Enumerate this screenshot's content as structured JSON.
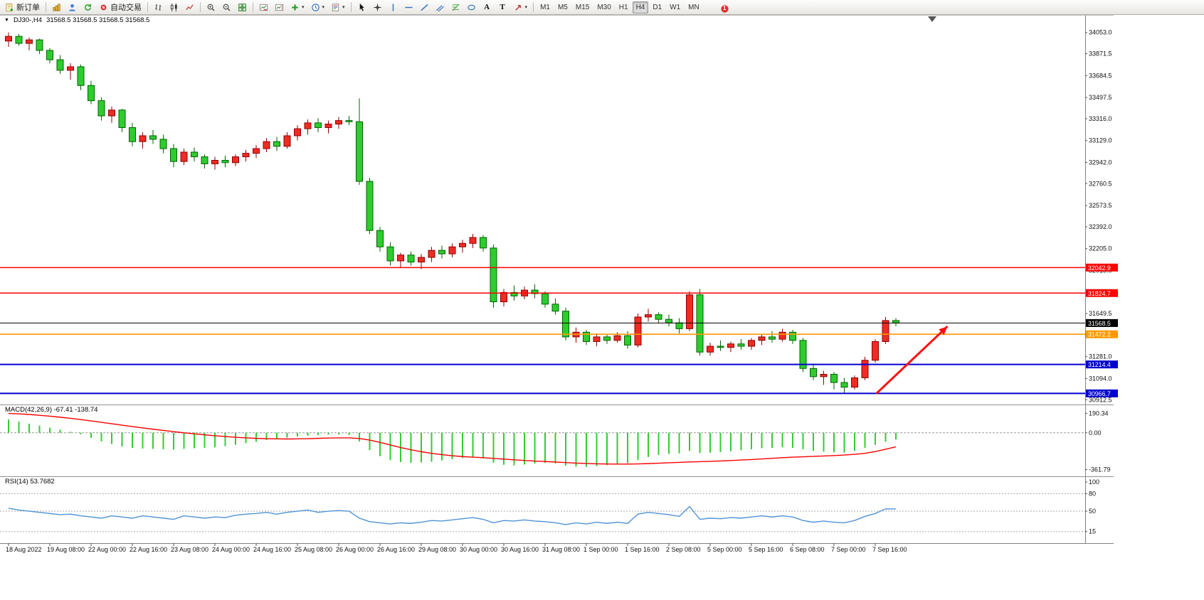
{
  "colors": {
    "up": "#ed2c24",
    "up_border": "#8f0000",
    "down": "#2ecc2e",
    "down_border": "#006400",
    "macd_hist": "#32cd32",
    "macd_signal": "#ff0000",
    "rsi": "#4f93d6",
    "line_red": "#ff0000",
    "line_orange": "#ff9900",
    "line_blue": "#0000d0",
    "bid_black": "#000000",
    "arrow": "#ff1010",
    "axis_text": "#111111"
  },
  "toolbar": {
    "groups": [
      {
        "name": "trade",
        "items": [
          {
            "icon": "new-order-icon",
            "name": "new-order-button",
            "label": "新订单"
          }
        ]
      },
      {
        "name": "services",
        "items": [
          {
            "icon": "market-icon",
            "name": "market-button"
          },
          {
            "icon": "profile-icon",
            "name": "profile-button"
          },
          {
            "icon": "refresh-icon",
            "name": "refresh-button"
          },
          {
            "icon": "autotrade-icon",
            "name": "autotrade-button",
            "label": "自动交易"
          }
        ]
      },
      {
        "name": "chart-types",
        "items": [
          {
            "icon": "bar-chart-icon",
            "name": "bar-chart-button"
          },
          {
            "icon": "candlestick-icon",
            "name": "candlestick-button"
          },
          {
            "icon": "line-chart-icon",
            "name": "line-chart-button"
          }
        ]
      },
      {
        "name": "zoom",
        "items": [
          {
            "icon": "zoom-in-icon",
            "name": "zoom-in-button"
          },
          {
            "icon": "zoom-out-icon",
            "name": "zoom-out-button"
          },
          {
            "icon": "tile-windows-icon",
            "name": "tile-windows-button"
          }
        ]
      },
      {
        "name": "chart-options",
        "items": [
          {
            "icon": "auto-scroll-icon",
            "name": "auto-scroll-button"
          },
          {
            "icon": "chart-shift-icon",
            "name": "chart-shift-button"
          },
          {
            "icon": "indicators-icon",
            "name": "indicators-button",
            "caret": true
          },
          {
            "icon": "periods-icon",
            "name": "periods-button",
            "caret": true
          },
          {
            "icon": "templates-icon",
            "name": "templates-button",
            "caret": true
          }
        ]
      },
      {
        "name": "drawing-tools",
        "items": [
          {
            "icon": "cursor-icon",
            "name": "cursor-button"
          },
          {
            "icon": "crosshair-icon",
            "name": "crosshair-button"
          },
          {
            "icon": "vline-icon",
            "name": "vertical-line-button"
          },
          {
            "icon": "hline-icon",
            "name": "horizontal-line-button"
          },
          {
            "icon": "trendline-icon",
            "name": "trendline-button"
          },
          {
            "icon": "channel-icon",
            "name": "equidistant-channel-button"
          },
          {
            "icon": "fibonacci-icon",
            "name": "fibonacci-button"
          },
          {
            "icon": "shapes-icon",
            "name": "shapes-button"
          },
          {
            "icon": "text-icon",
            "name": "text-button",
            "glyph": "A"
          },
          {
            "icon": "label-icon",
            "name": "text-label-button",
            "glyph": "T"
          },
          {
            "icon": "arrows-icon",
            "name": "arrows-button",
            "caret": true
          }
        ]
      },
      {
        "name": "timeframes",
        "type": "timeframes",
        "items": [
          {
            "label": "M1"
          },
          {
            "label": "M5"
          },
          {
            "label": "M15"
          },
          {
            "label": "M30"
          },
          {
            "label": "H1"
          },
          {
            "label": "H4",
            "active": true
          },
          {
            "label": "D1"
          },
          {
            "label": "W1"
          },
          {
            "label": "MN"
          }
        ]
      }
    ],
    "right": [
      {
        "icon": "news-icon",
        "name": "news-indicator"
      },
      {
        "icon": "notification-badge-icon",
        "name": "notification-badge",
        "label": "1"
      }
    ]
  },
  "chart_header": {
    "expander": "▼",
    "symbol": "DJ30-,H4",
    "ohlc": "31568.5 31568.5 31568.5 31568.5"
  },
  "chart_data": {
    "type": "candlestick",
    "symbol": "DJ30-",
    "timeframe": "H4",
    "ylim": [
      30890,
      34100
    ],
    "price_ticks": [
      "34053.0",
      "33871.5",
      "33684.5",
      "33497.5",
      "33316.0",
      "33129.0",
      "32942.0",
      "32760.5",
      "32573.5",
      "32392.0",
      "32205.0",
      "32018.0",
      "31836.5",
      "31649.5",
      "31462.5",
      "31281.0",
      "31094.0",
      "30912.5"
    ],
    "time_labels": [
      "18 Aug 2022",
      "19 Aug 08:00",
      "22 Aug 00:00",
      "22 Aug 16:00",
      "23 Aug 08:00",
      "24 Aug 00:00",
      "24 Aug 16:00",
      "25 Aug 08:00",
      "26 Aug 00:00",
      "26 Aug 16:00",
      "29 Aug 08:00",
      "30 Aug 00:00",
      "30 Aug 16:00",
      "31 Aug 08:00",
      "1 Sep 00:00",
      "1 Sep 16:00",
      "2 Sep 08:00",
      "5 Sep 00:00",
      "5 Sep 16:00",
      "6 Sep 08:00",
      "7 Sep 00:00",
      "7 Sep 16:00"
    ],
    "label_every_n_bars": 4,
    "candles": [
      [
        33980,
        34053,
        33930,
        34020
      ],
      [
        34020,
        34040,
        33940,
        33960
      ],
      [
        33960,
        34010,
        33900,
        33990
      ],
      [
        33990,
        34000,
        33870,
        33900
      ],
      [
        33900,
        33920,
        33790,
        33820
      ],
      [
        33820,
        33860,
        33700,
        33730
      ],
      [
        33730,
        33790,
        33650,
        33760
      ],
      [
        33760,
        33780,
        33560,
        33600
      ],
      [
        33600,
        33640,
        33440,
        33470
      ],
      [
        33470,
        33500,
        33300,
        33340
      ],
      [
        33340,
        33420,
        33280,
        33390
      ],
      [
        33390,
        33400,
        33200,
        33240
      ],
      [
        33240,
        33280,
        33080,
        33120
      ],
      [
        33120,
        33200,
        33060,
        33170
      ],
      [
        33170,
        33220,
        33100,
        33140
      ],
      [
        33140,
        33180,
        33020,
        33060
      ],
      [
        33060,
        33100,
        32900,
        32950
      ],
      [
        32950,
        33060,
        32920,
        33030
      ],
      [
        33030,
        33070,
        32950,
        32990
      ],
      [
        32990,
        33010,
        32890,
        32930
      ],
      [
        32930,
        32990,
        32880,
        32960
      ],
      [
        32960,
        33000,
        32900,
        32940
      ],
      [
        32940,
        33010,
        32910,
        32990
      ],
      [
        32990,
        33050,
        32950,
        33020
      ],
      [
        33020,
        33090,
        32980,
        33060
      ],
      [
        33060,
        33150,
        33030,
        33120
      ],
      [
        33120,
        33160,
        33040,
        33080
      ],
      [
        33080,
        33200,
        33060,
        33170
      ],
      [
        33170,
        33260,
        33130,
        33230
      ],
      [
        33230,
        33310,
        33180,
        33280
      ],
      [
        33280,
        33320,
        33200,
        33240
      ],
      [
        33240,
        33300,
        33190,
        33270
      ],
      [
        33270,
        33330,
        33230,
        33300
      ],
      [
        33300,
        33340,
        33260,
        33290
      ],
      [
        33290,
        33490,
        32750,
        32780
      ],
      [
        32780,
        32810,
        32330,
        32360
      ],
      [
        32360,
        32390,
        32180,
        32220
      ],
      [
        32220,
        32260,
        32060,
        32100
      ],
      [
        32100,
        32170,
        32040,
        32150
      ],
      [
        32150,
        32180,
        32060,
        32090
      ],
      [
        32090,
        32160,
        32030,
        32130
      ],
      [
        32130,
        32220,
        32090,
        32190
      ],
      [
        32190,
        32230,
        32120,
        32160
      ],
      [
        32160,
        32250,
        32130,
        32220
      ],
      [
        32220,
        32280,
        32170,
        32250
      ],
      [
        32250,
        32330,
        32210,
        32300
      ],
      [
        32300,
        32320,
        32180,
        32210
      ],
      [
        32210,
        32240,
        31700,
        31750
      ],
      [
        31750,
        31860,
        31710,
        31830
      ],
      [
        31830,
        31890,
        31760,
        31800
      ],
      [
        31800,
        31880,
        31770,
        31850
      ],
      [
        31850,
        31900,
        31780,
        31820
      ],
      [
        31820,
        31840,
        31700,
        31730
      ],
      [
        31730,
        31780,
        31640,
        31670
      ],
      [
        31670,
        31700,
        31420,
        31450
      ],
      [
        31450,
        31530,
        31400,
        31490
      ],
      [
        31490,
        31510,
        31380,
        31410
      ],
      [
        31410,
        31480,
        31370,
        31450
      ],
      [
        31450,
        31470,
        31390,
        31420
      ],
      [
        31420,
        31490,
        31400,
        31460
      ],
      [
        31460,
        31500,
        31350,
        31380
      ],
      [
        31380,
        31650,
        31360,
        31620
      ],
      [
        31620,
        31690,
        31580,
        31640
      ],
      [
        31640,
        31660,
        31570,
        31600
      ],
      [
        31600,
        31640,
        31540,
        31570
      ],
      [
        31570,
        31610,
        31480,
        31520
      ],
      [
        31520,
        31840,
        31500,
        31810
      ],
      [
        31810,
        31860,
        31290,
        31320
      ],
      [
        31320,
        31400,
        31290,
        31370
      ],
      [
        31370,
        31420,
        31330,
        31360
      ],
      [
        31360,
        31410,
        31320,
        31390
      ],
      [
        31390,
        31430,
        31340,
        31370
      ],
      [
        31370,
        31440,
        31340,
        31420
      ],
      [
        31420,
        31470,
        31380,
        31450
      ],
      [
        31450,
        31500,
        31400,
        31430
      ],
      [
        31430,
        31520,
        31410,
        31490
      ],
      [
        31490,
        31510,
        31390,
        31420
      ],
      [
        31420,
        31440,
        31150,
        31180
      ],
      [
        31180,
        31220,
        31080,
        31110
      ],
      [
        31110,
        31160,
        31040,
        31130
      ],
      [
        31130,
        31150,
        31000,
        31060
      ],
      [
        31060,
        31100,
        30966.7,
        31020
      ],
      [
        31020,
        31120,
        31000,
        31100
      ],
      [
        31100,
        31280,
        31080,
        31250
      ],
      [
        31250,
        31430,
        31230,
        31410
      ],
      [
        31410,
        31620,
        31390,
        31590
      ],
      [
        31590,
        31610,
        31540,
        31568.5
      ]
    ],
    "hlines": [
      {
        "price": 32042.9,
        "label": "32042.9",
        "color": "#ff0000",
        "width": 1.6
      },
      {
        "price": 31824.7,
        "label": "31824.7",
        "color": "#ff0000",
        "width": 1.6
      },
      {
        "price": 31568.5,
        "label": "31568.5",
        "color": "#000000",
        "width": 1,
        "role": "bid"
      },
      {
        "price": 31472.2,
        "label": "31472.2",
        "color": "#ff9900",
        "width": 1.6
      },
      {
        "price": 31214.4,
        "label": "31214.4",
        "color": "#0000d0",
        "width": 2
      },
      {
        "price": 30966.7,
        "label": "30966.7",
        "color": "#0000d0",
        "width": 2
      }
    ],
    "arrow": {
      "from_bar": 84.1,
      "from_price": 30965,
      "to_bar": 91,
      "to_price": 31540,
      "color": "#ff1010"
    },
    "indicators": [
      {
        "name": "MACD",
        "title": "MACD(42,26,9) -67.41 -138.74",
        "vlim": [
          -400,
          215
        ],
        "zero_line": 0,
        "scale_labels": [
          {
            "value": 190.34,
            "text": "190.34"
          },
          {
            "value": 0,
            "text": "0.00"
          },
          {
            "value": -361.79,
            "text": "-361.79"
          }
        ],
        "histogram": [
          130,
          110,
          90,
          70,
          50,
          30,
          10,
          -15,
          -50,
          -85,
          -110,
          -135,
          -148,
          -155,
          -158,
          -162,
          -165,
          -158,
          -152,
          -148,
          -142,
          -132,
          -118,
          -102,
          -88,
          -72,
          -58,
          -48,
          -38,
          -28,
          -22,
          -18,
          -15,
          -22,
          -85,
          -170,
          -230,
          -268,
          -288,
          -295,
          -292,
          -285,
          -272,
          -260,
          -248,
          -240,
          -252,
          -295,
          -315,
          -320,
          -312,
          -302,
          -295,
          -302,
          -322,
          -332,
          -335,
          -328,
          -318,
          -308,
          -298,
          -268,
          -238,
          -218,
          -208,
          -202,
          -178,
          -198,
          -196,
          -190,
          -182,
          -172,
          -162,
          -152,
          -148,
          -142,
          -148,
          -162,
          -178,
          -185,
          -192,
          -196,
          -178,
          -148,
          -118,
          -88,
          -67.41
        ],
        "signal": [
          190,
          186,
          180,
          172,
          163,
          153,
          142,
          130,
          117,
          103,
          89,
          75,
          61,
          48,
          35,
          23,
          11,
          0,
          -10,
          -20,
          -29,
          -37,
          -44,
          -50,
          -55,
          -58,
          -60,
          -61,
          -60,
          -58,
          -55,
          -52,
          -50,
          -50,
          -56,
          -72,
          -95,
          -120,
          -145,
          -167,
          -186,
          -202,
          -215,
          -226,
          -234,
          -240,
          -245,
          -252,
          -259,
          -266,
          -272,
          -278,
          -283,
          -288,
          -293,
          -298,
          -302,
          -305,
          -307,
          -308,
          -308,
          -306,
          -303,
          -299,
          -295,
          -291,
          -287,
          -284,
          -281,
          -277,
          -273,
          -268,
          -263,
          -257,
          -251,
          -245,
          -240,
          -236,
          -232,
          -228,
          -224,
          -219,
          -212,
          -202,
          -185,
          -162,
          -138.74
        ]
      },
      {
        "name": "RSI",
        "title": "RSI(14) 53.7682",
        "vlim": [
          0,
          105
        ],
        "levels": [
          80,
          50,
          15
        ],
        "scale_labels": [
          {
            "value": 100,
            "text": "100"
          },
          {
            "value": 80,
            "text": "80"
          },
          {
            "value": 50,
            "text": "50"
          },
          {
            "value": 15,
            "text": "15"
          }
        ],
        "values": [
          55,
          52,
          50,
          48,
          46,
          44,
          45,
          42,
          40,
          38,
          42,
          40,
          38,
          42,
          40,
          38,
          36,
          42,
          40,
          38,
          40,
          39,
          43,
          45,
          46,
          48,
          45,
          48,
          50,
          52,
          48,
          50,
          51,
          50,
          38,
          32,
          30,
          28,
          30,
          29,
          31,
          34,
          33,
          35,
          37,
          39,
          36,
          30,
          34,
          33,
          35,
          33,
          32,
          30,
          27,
          30,
          28,
          31,
          29,
          31,
          29,
          45,
          48,
          46,
          44,
          41,
          58,
          36,
          38,
          37,
          39,
          38,
          40,
          42,
          40,
          42,
          40,
          34,
          31,
          33,
          31,
          30,
          34,
          41,
          46,
          54,
          53.77
        ]
      }
    ]
  }
}
